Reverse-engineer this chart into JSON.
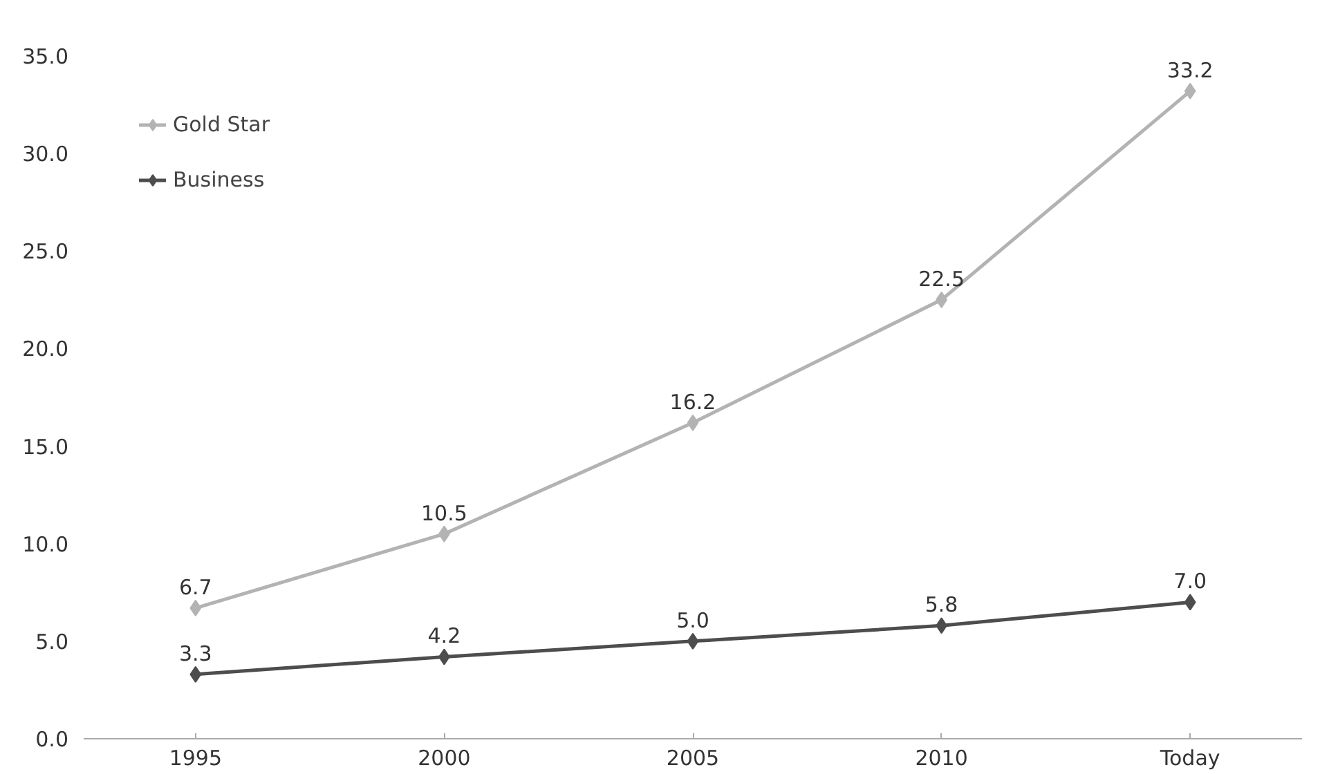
{
  "chart_data": {
    "type": "line",
    "categories": [
      "1995",
      "2000",
      "2005",
      "2010",
      "Today"
    ],
    "series": [
      {
        "name": "Gold Star",
        "color": "#b3b3b3",
        "values": [
          6.7,
          10.5,
          16.2,
          22.5,
          33.2
        ],
        "value_labels": [
          "6.7",
          "10.5",
          "16.2",
          "22.5",
          "33.2"
        ]
      },
      {
        "name": "Business",
        "color": "#4d4d4d",
        "values": [
          3.3,
          4.2,
          5.0,
          5.8,
          7.0
        ],
        "value_labels": [
          "3.3",
          "4.2",
          "5.0",
          "5.8",
          "7.0"
        ]
      }
    ],
    "ylim": [
      0,
      35
    ],
    "yticks": [
      {
        "value": 0,
        "label": "0.0"
      },
      {
        "value": 5,
        "label": "5.0"
      },
      {
        "value": 10,
        "label": "10.0"
      },
      {
        "value": 15,
        "label": "15.0"
      },
      {
        "value": 20,
        "label": "20.0"
      },
      {
        "value": 25,
        "label": "25.0"
      },
      {
        "value": 30,
        "label": "30.0"
      },
      {
        "value": 35,
        "label": "35.0"
      }
    ],
    "grid": false,
    "legend": "top left",
    "marker": "diamond",
    "line_style": "solid"
  }
}
